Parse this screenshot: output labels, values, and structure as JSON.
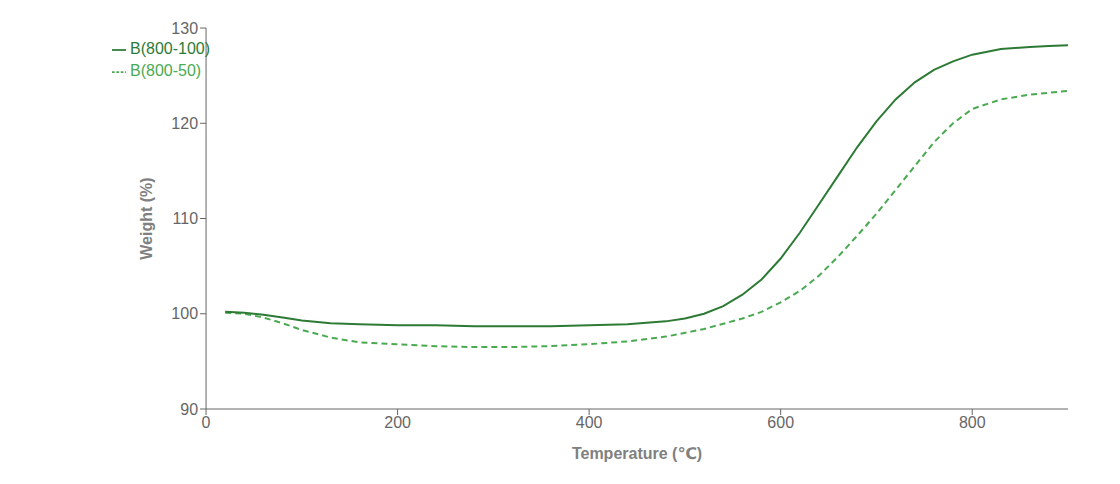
{
  "chart_data": {
    "type": "line",
    "xlabel": "Temperature (℃)",
    "ylabel": "Weight (%)",
    "xlim": [
      0,
      900
    ],
    "ylim": [
      90,
      130
    ],
    "xticks": [
      0,
      200,
      400,
      600,
      800
    ],
    "yticks": [
      90,
      100,
      110,
      120,
      130
    ],
    "grid": false,
    "legend": "upper left",
    "series": [
      {
        "name": "B(800-50)",
        "color": "#4aaa52",
        "line_style": "dashed",
        "x": [
          20,
          40,
          60,
          80,
          100,
          130,
          160,
          200,
          240,
          280,
          320,
          360,
          400,
          440,
          480,
          520,
          560,
          580,
          600,
          620,
          640,
          660,
          680,
          700,
          720,
          740,
          760,
          780,
          800,
          830,
          860,
          880,
          900
        ],
        "values": [
          100.1,
          100.0,
          99.6,
          99.0,
          98.3,
          97.5,
          97.0,
          96.8,
          96.6,
          96.5,
          96.5,
          96.6,
          96.8,
          97.1,
          97.6,
          98.4,
          99.5,
          100.2,
          101.2,
          102.4,
          104.0,
          106.0,
          108.2,
          110.5,
          113.0,
          115.5,
          118.0,
          120.0,
          121.5,
          122.5,
          123.0,
          123.2,
          123.4
        ]
      },
      {
        "name": "B(800-100)",
        "color": "#2d7a35",
        "line_style": "solid",
        "x": [
          20,
          40,
          60,
          80,
          100,
          130,
          160,
          200,
          240,
          280,
          320,
          360,
          400,
          440,
          480,
          500,
          520,
          540,
          560,
          580,
          600,
          620,
          640,
          660,
          680,
          700,
          720,
          740,
          760,
          780,
          800,
          830,
          860,
          880,
          900
        ],
        "values": [
          100.2,
          100.1,
          99.9,
          99.6,
          99.3,
          99.0,
          98.9,
          98.8,
          98.8,
          98.7,
          98.7,
          98.7,
          98.8,
          98.9,
          99.2,
          99.5,
          100.0,
          100.8,
          102.0,
          103.6,
          105.8,
          108.5,
          111.5,
          114.5,
          117.5,
          120.2,
          122.5,
          124.3,
          125.6,
          126.5,
          127.2,
          127.8,
          128.0,
          128.1,
          128.2
        ]
      }
    ]
  }
}
